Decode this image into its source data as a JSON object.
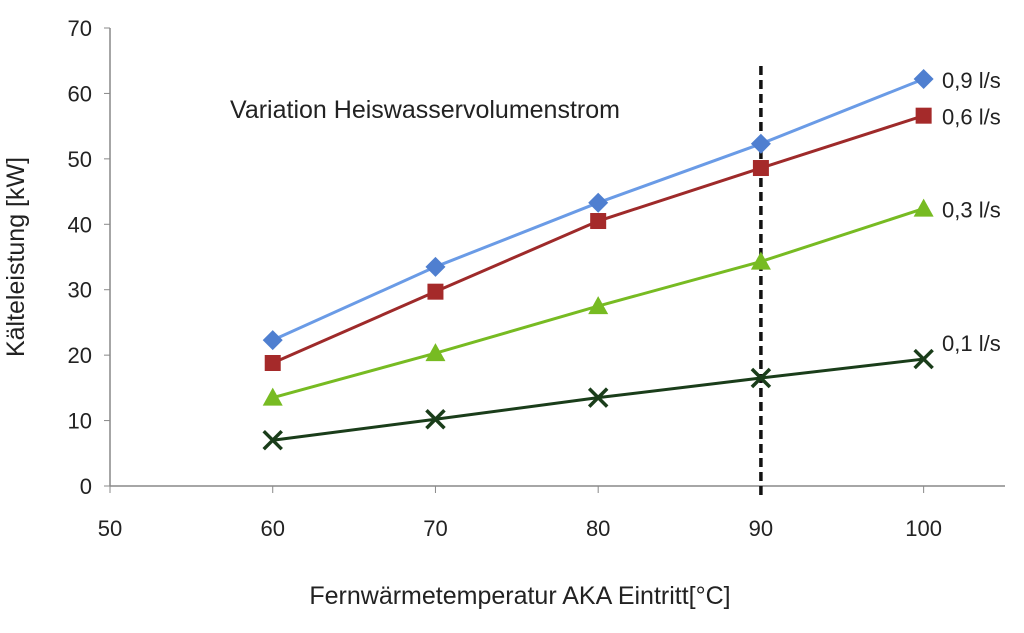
{
  "chart_data": {
    "type": "line",
    "title": "",
    "annotation": "Variation Heiswasservolumenstrom",
    "xlabel": "Fernwärmetemperatur AKA Eintritt[°C]",
    "ylabel": "Kälteleistung [kW]",
    "xlim": [
      50,
      105
    ],
    "ylim": [
      0,
      70
    ],
    "xticks": [
      50,
      60,
      70,
      80,
      90,
      100
    ],
    "yticks": [
      0,
      10,
      20,
      30,
      40,
      50,
      60,
      70
    ],
    "x": [
      60,
      70,
      80,
      90,
      100
    ],
    "vline": {
      "x": 90,
      "style": "dashed",
      "color": "#111111"
    },
    "series": [
      {
        "name": "0,9 l/s",
        "values": [
          22.3,
          33.5,
          43.3,
          52.3,
          62.2
        ],
        "color": "#6A9BE6",
        "marker": "diamond",
        "marker_color": "#4F7FD0"
      },
      {
        "name": "0,6 l/s",
        "values": [
          18.8,
          29.7,
          40.5,
          48.6,
          56.6
        ],
        "color": "#9E2A2A",
        "marker": "square",
        "marker_color": "#A52A2A"
      },
      {
        "name": "0,3 l/s",
        "values": [
          13.5,
          20.3,
          27.5,
          34.3,
          42.4
        ],
        "color": "#77BB22",
        "marker": "triangle",
        "marker_color": "#77BB22"
      },
      {
        "name": "0,1 l/s",
        "values": [
          7.0,
          10.2,
          13.5,
          16.5,
          19.4
        ],
        "color": "#1A3D1A",
        "marker": "x",
        "marker_color": "#1A3D1A"
      }
    ]
  }
}
